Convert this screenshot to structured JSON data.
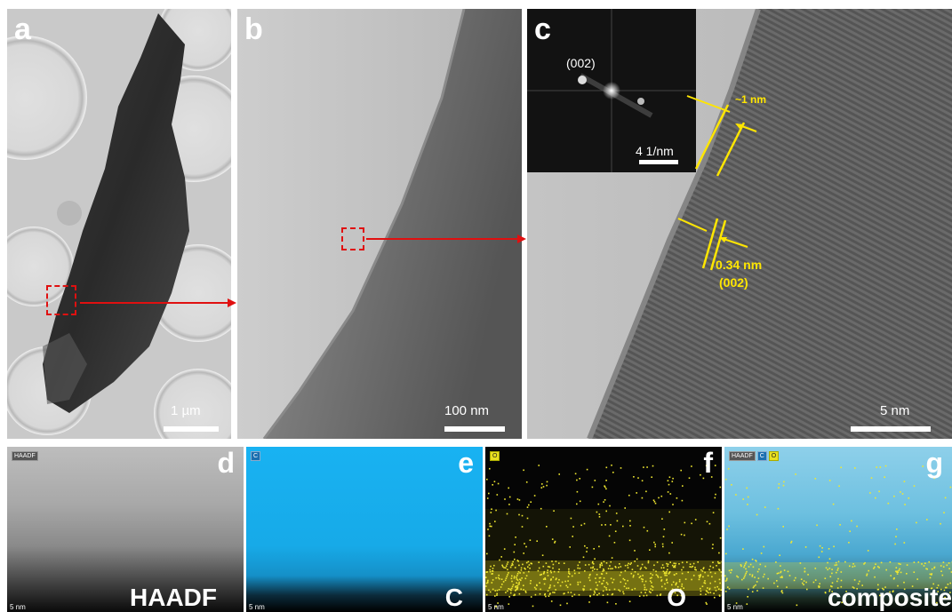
{
  "panels": {
    "a": {
      "label": "a",
      "scale": "1 µm"
    },
    "b": {
      "label": "b",
      "scale": "100 nm"
    },
    "c": {
      "label": "c",
      "scale": "5 nm",
      "inset_plane": "(002)",
      "inset_scale": "4 1/nm",
      "annot_thickness": "~1 nm",
      "annot_spacing": "0.34 nm",
      "annot_plane": "(002)"
    },
    "d": {
      "label": "d",
      "name": "HAADF",
      "tag": "HAADF",
      "small_scale": "5 nm"
    },
    "e": {
      "label": "e",
      "name": "C",
      "tag": "C",
      "small_scale": "5 nm"
    },
    "f": {
      "label": "f",
      "name": "O",
      "tag": "O",
      "small_scale": "5 nm"
    },
    "g": {
      "label": "g",
      "name": "composite",
      "tag1": "HAADF",
      "tag2": "C",
      "tag3": "O",
      "small_scale": "5 nm"
    }
  },
  "colors": {
    "annotation": "#ffe600",
    "zoom_marker": "#e01010",
    "carbon_map": "#1ab0f0",
    "oxygen_map": "#e8e020"
  }
}
